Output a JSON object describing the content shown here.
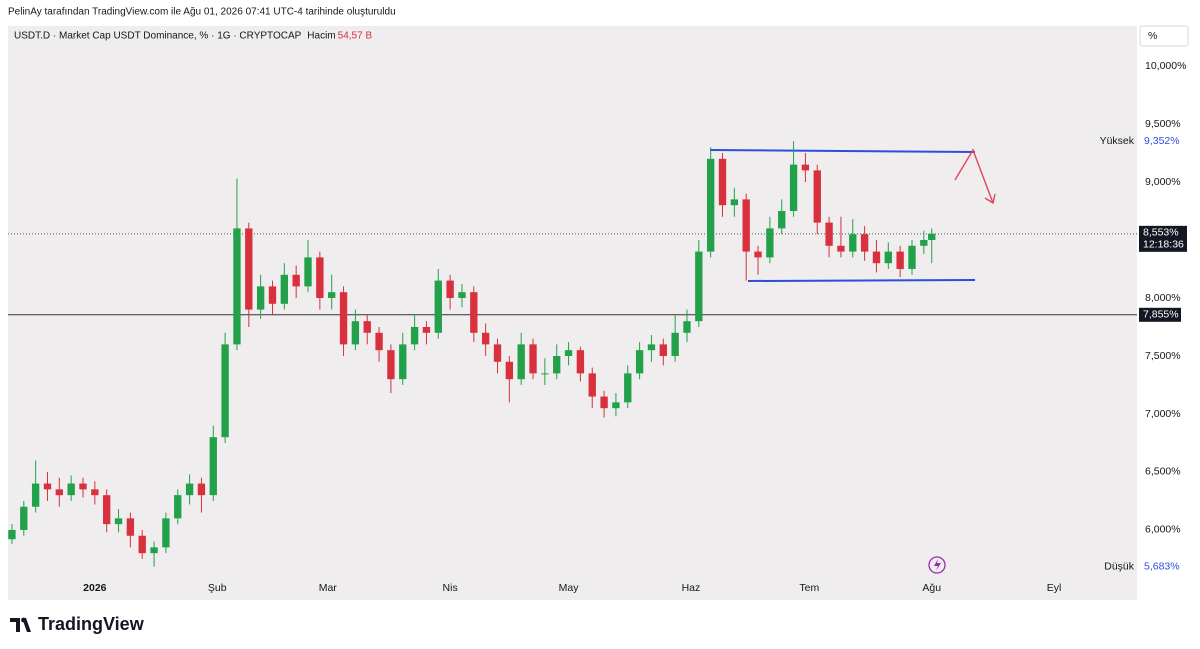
{
  "chart_data": {
    "type": "candlestick",
    "caption": "PelinAy tarafından TradingView.com ile Ağu 01, 2026 07:41 UTC-4 tarihinde oluşturuldu",
    "title": "USDT.D · Market Cap USDT Dominance, % · 1G · CRYPTOCAP",
    "volume_label": "Hacim",
    "volume_value": "54,57 B",
    "unit_button": "%",
    "brand": "TradingView",
    "up_color": "#22a14a",
    "down_color": "#d8303c",
    "xlim": [
      -22,
      264
    ],
    "xticks": [
      {
        "value": 0,
        "label": "2026"
      },
      {
        "value": 31,
        "label": "Şub"
      },
      {
        "value": 59,
        "label": "Mar"
      },
      {
        "value": 90,
        "label": "Nis"
      },
      {
        "value": 120,
        "label": "May"
      },
      {
        "value": 151,
        "label": "Haz"
      },
      {
        "value": 181,
        "label": "Tem"
      },
      {
        "value": 212,
        "label": "Ağu"
      },
      {
        "value": 243,
        "label": "Eyl"
      }
    ],
    "ylim": [
      5.603,
      10.345
    ],
    "yticks": [
      {
        "value": 6,
        "label": "6,000%"
      },
      {
        "value": 6.5,
        "label": "6,500%"
      },
      {
        "value": 7,
        "label": "7,000%"
      },
      {
        "value": 7.5,
        "label": "7,500%"
      },
      {
        "value": 8,
        "label": "8,000%"
      },
      {
        "value": 8.5,
        "label": "8,500%"
      },
      {
        "value": 9,
        "label": "9,000%"
      },
      {
        "value": 9.5,
        "label": "9,500%"
      },
      {
        "value": 10,
        "label": "10,000%"
      }
    ],
    "high_label": "Yüksek",
    "high_value": {
      "value": 9.352,
      "label": "9,352%"
    },
    "low_label": "Düşük",
    "low_value": {
      "value": 5.683,
      "label": "5,683%"
    },
    "last": {
      "value": 8.553,
      "label": "8,553%"
    },
    "countdown": "12:18:36",
    "hline": {
      "value": 7.855,
      "label": "7,855%"
    },
    "x": [
      -21,
      -18,
      -15,
      -12,
      -9,
      -6,
      -3,
      0,
      3,
      6,
      9,
      12,
      15,
      18,
      21,
      24,
      27,
      30,
      33,
      36,
      39,
      42,
      45,
      48,
      51,
      54,
      57,
      60,
      63,
      66,
      69,
      72,
      75,
      78,
      81,
      84,
      87,
      90,
      93,
      96,
      99,
      102,
      105,
      108,
      111,
      114,
      117,
      120,
      123,
      126,
      129,
      132,
      135,
      138,
      141,
      144,
      147,
      150,
      153,
      156,
      159,
      162,
      165,
      168,
      171,
      174,
      177,
      180,
      183,
      186,
      189,
      192,
      195,
      198,
      201,
      204,
      207,
      210,
      212
    ],
    "open": [
      5.92,
      6.0,
      6.2,
      6.4,
      6.35,
      6.3,
      6.4,
      6.35,
      6.3,
      6.05,
      6.1,
      5.95,
      5.8,
      5.85,
      6.1,
      6.3,
      6.4,
      6.3,
      6.8,
      7.6,
      8.6,
      7.9,
      8.1,
      7.95,
      8.2,
      8.1,
      8.35,
      8.0,
      8.05,
      7.6,
      7.8,
      7.7,
      7.55,
      7.3,
      7.6,
      7.75,
      7.7,
      8.15,
      8.0,
      8.05,
      7.7,
      7.6,
      7.45,
      7.3,
      7.6,
      7.35,
      7.35,
      7.5,
      7.55,
      7.35,
      7.15,
      7.05,
      7.1,
      7.35,
      7.55,
      7.6,
      7.5,
      7.7,
      7.8,
      8.4,
      9.2,
      8.8,
      8.85,
      8.4,
      8.35,
      8.6,
      8.75,
      9.15,
      9.1,
      8.65,
      8.45,
      8.4,
      8.55,
      8.4,
      8.3,
      8.4,
      8.25,
      8.45,
      8.5
    ],
    "high": [
      6.05,
      6.25,
      6.6,
      6.5,
      6.45,
      6.47,
      6.45,
      6.42,
      6.35,
      6.18,
      6.15,
      6.0,
      5.9,
      6.15,
      6.35,
      6.48,
      6.45,
      6.9,
      7.7,
      9.03,
      8.65,
      8.2,
      8.15,
      8.3,
      8.28,
      8.5,
      8.4,
      8.2,
      8.1,
      7.9,
      7.85,
      7.75,
      7.6,
      7.7,
      7.85,
      7.8,
      8.25,
      8.2,
      8.12,
      8.1,
      7.78,
      7.65,
      7.5,
      7.7,
      7.65,
      7.48,
      7.6,
      7.62,
      7.58,
      7.4,
      7.2,
      7.18,
      7.42,
      7.62,
      7.68,
      7.65,
      7.85,
      7.9,
      8.5,
      9.3,
      9.25,
      8.95,
      8.9,
      8.45,
      8.7,
      8.85,
      9.352,
      9.25,
      9.15,
      8.7,
      8.7,
      8.68,
      8.62,
      8.5,
      8.48,
      8.45,
      8.5,
      8.58,
      8.6
    ],
    "low": [
      5.88,
      5.95,
      6.15,
      6.25,
      6.2,
      6.25,
      6.28,
      6.22,
      5.98,
      5.98,
      5.85,
      5.75,
      5.683,
      5.8,
      6.05,
      6.22,
      6.15,
      6.25,
      6.75,
      7.55,
      7.75,
      7.82,
      7.85,
      7.9,
      8.0,
      8.05,
      7.9,
      7.9,
      7.5,
      7.55,
      7.6,
      7.45,
      7.18,
      7.25,
      7.55,
      7.6,
      7.65,
      7.9,
      7.92,
      7.62,
      7.5,
      7.35,
      7.1,
      7.25,
      7.3,
      7.25,
      7.3,
      7.42,
      7.28,
      7.05,
      6.97,
      6.98,
      7.05,
      7.3,
      7.45,
      7.42,
      7.45,
      7.62,
      7.75,
      8.35,
      8.7,
      8.7,
      8.15,
      8.2,
      8.3,
      8.55,
      8.7,
      9.0,
      8.55,
      8.35,
      8.35,
      8.35,
      8.32,
      8.22,
      8.25,
      8.18,
      8.2,
      8.38,
      8.3
    ],
    "close": [
      6.0,
      6.2,
      6.4,
      6.35,
      6.3,
      6.4,
      6.35,
      6.3,
      6.05,
      6.1,
      5.95,
      5.8,
      5.85,
      6.1,
      6.3,
      6.4,
      6.3,
      6.8,
      7.6,
      8.6,
      7.9,
      8.1,
      7.95,
      8.2,
      8.1,
      8.35,
      8.0,
      8.05,
      7.6,
      7.8,
      7.7,
      7.55,
      7.3,
      7.6,
      7.75,
      7.7,
      8.15,
      8.0,
      8.05,
      7.7,
      7.6,
      7.45,
      7.3,
      7.6,
      7.35,
      7.35,
      7.5,
      7.55,
      7.35,
      7.15,
      7.05,
      7.1,
      7.35,
      7.55,
      7.6,
      7.5,
      7.7,
      7.8,
      8.4,
      9.2,
      8.8,
      8.85,
      8.4,
      8.35,
      8.6,
      8.75,
      9.15,
      9.1,
      8.65,
      8.45,
      8.4,
      8.55,
      8.4,
      8.3,
      8.4,
      8.25,
      8.45,
      8.5,
      8.553
    ]
  }
}
